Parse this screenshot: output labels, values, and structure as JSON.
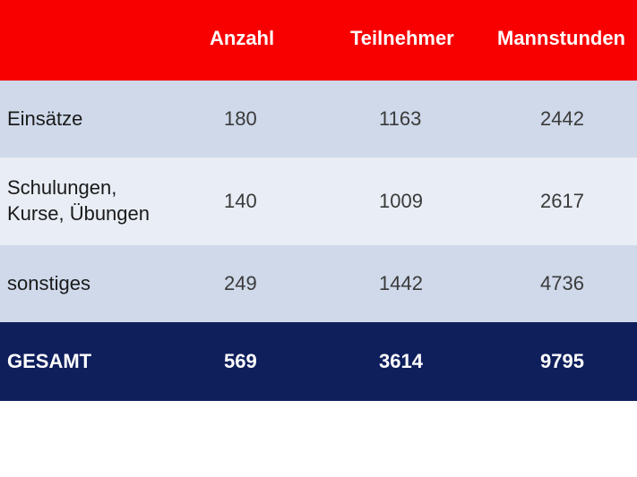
{
  "table": {
    "headers": [
      "",
      "Anzahl",
      "Teilnehmer",
      "Mannstunden"
    ],
    "rows": [
      {
        "label_lines": [
          "Einsätze"
        ],
        "anzahl": "180",
        "teilnehmer": "1163",
        "mannstunden": "2442"
      },
      {
        "label_lines": [
          "Schulungen,",
          "Kurse, Übungen"
        ],
        "anzahl": "140",
        "teilnehmer": "1009",
        "mannstunden": "2617"
      },
      {
        "label_lines": [
          "sonstiges"
        ],
        "anzahl": "249",
        "teilnehmer": "1442",
        "mannstunden": "4736"
      }
    ],
    "total": {
      "label": "GESAMT",
      "anzahl": "569",
      "teilnehmer": "3614",
      "mannstunden": "9795"
    }
  },
  "colors": {
    "header_bg": "#f80000",
    "row_light": "#cfd9ea",
    "row_lighter": "#e9edf5",
    "total_bg": "#0f1f5c"
  }
}
